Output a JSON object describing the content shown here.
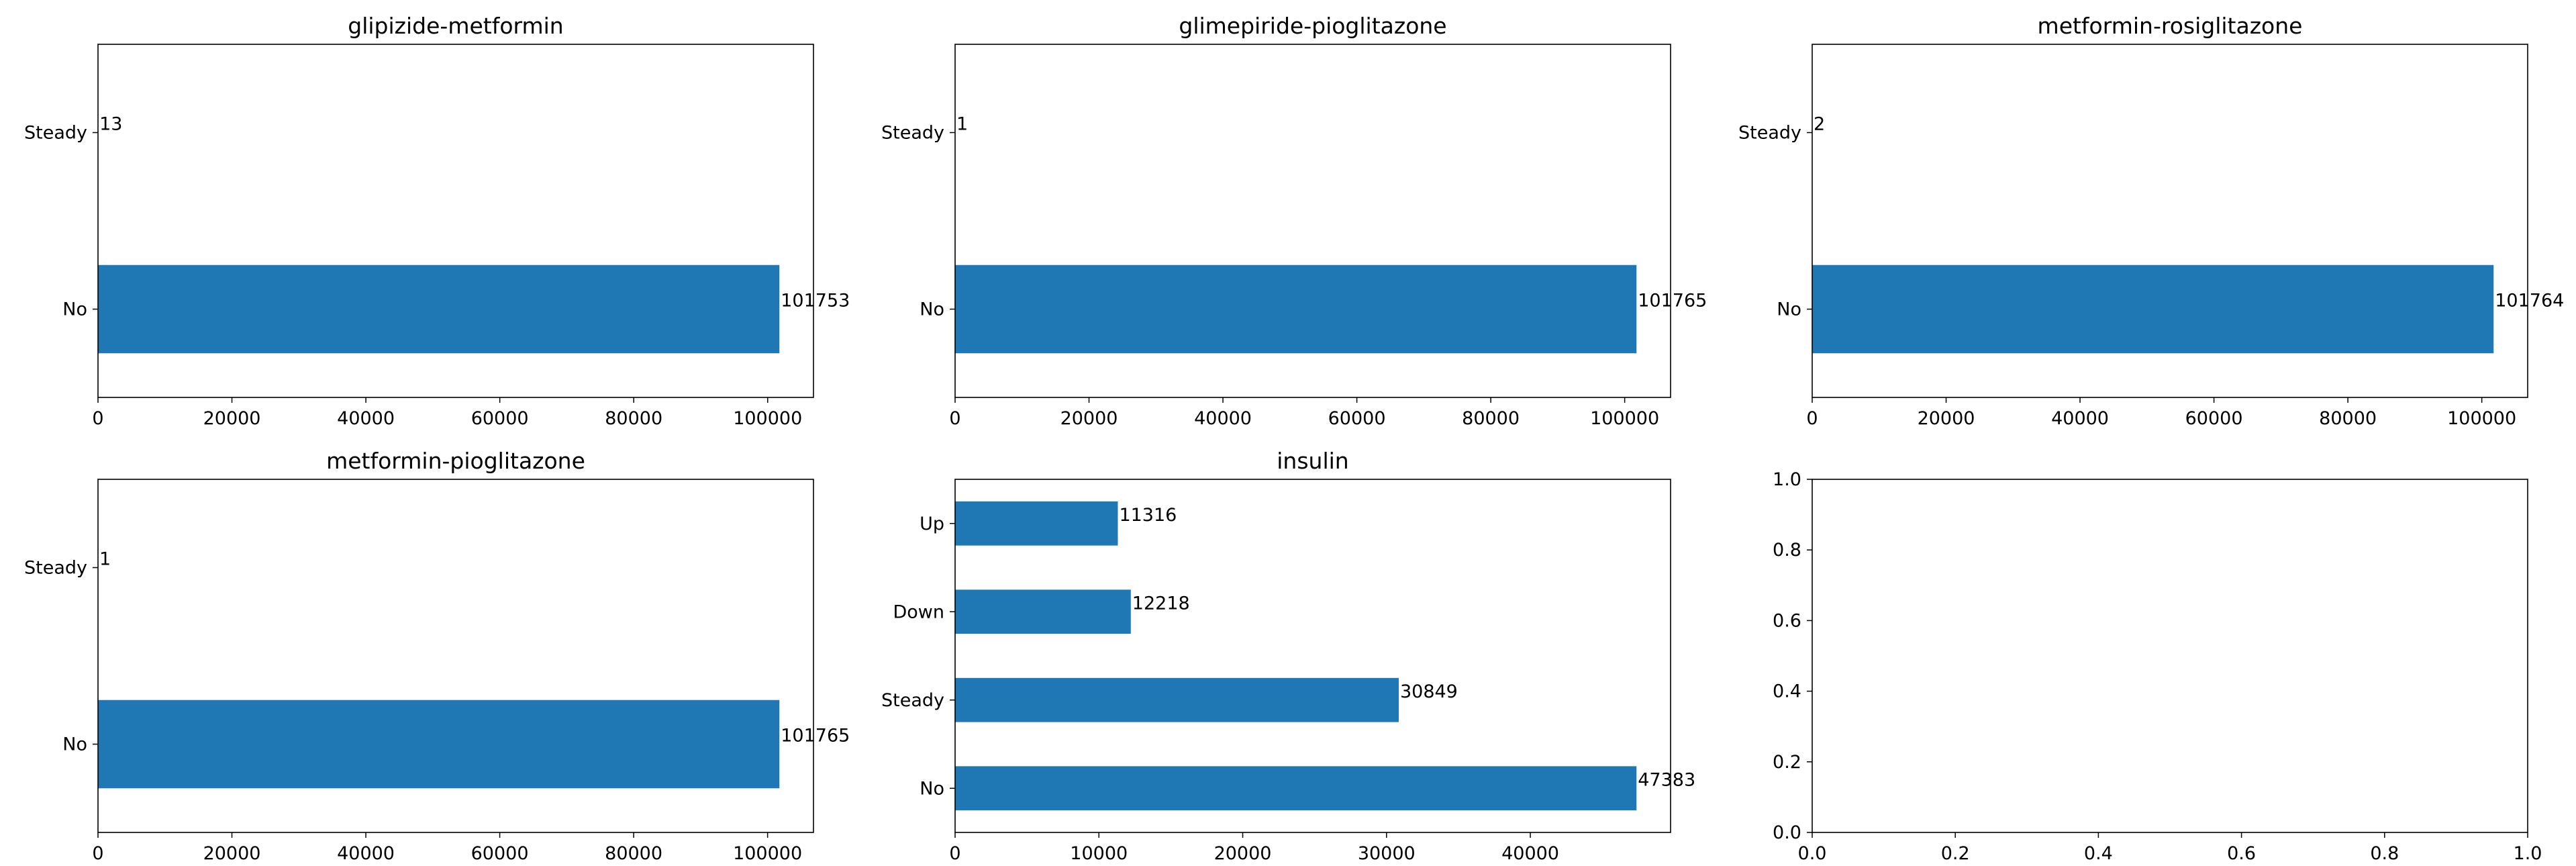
{
  "chart_data": [
    {
      "type": "bar",
      "orientation": "horizontal",
      "title": "glipizide-metformin",
      "categories": [
        "No",
        "Steady"
      ],
      "values": [
        101753,
        13
      ],
      "data_labels": [
        "101753",
        "13"
      ],
      "xlim": [
        0,
        106841
      ],
      "xticks": [
        0,
        20000,
        40000,
        60000,
        80000,
        100000
      ],
      "xtick_labels": [
        "0",
        "20000",
        "40000",
        "60000",
        "80000",
        "100000"
      ],
      "grid": false,
      "color": "#1f77b4"
    },
    {
      "type": "bar",
      "orientation": "horizontal",
      "title": "glimepiride-pioglitazone",
      "categories": [
        "No",
        "Steady"
      ],
      "values": [
        101765,
        1
      ],
      "data_labels": [
        "101765",
        "1"
      ],
      "xlim": [
        0,
        106853
      ],
      "xticks": [
        0,
        20000,
        40000,
        60000,
        80000,
        100000
      ],
      "xtick_labels": [
        "0",
        "20000",
        "40000",
        "60000",
        "80000",
        "100000"
      ],
      "grid": false,
      "color": "#1f77b4"
    },
    {
      "type": "bar",
      "orientation": "horizontal",
      "title": "metformin-rosiglitazone",
      "categories": [
        "No",
        "Steady"
      ],
      "values": [
        101764,
        2
      ],
      "data_labels": [
        "101764",
        "2"
      ],
      "xlim": [
        0,
        106852
      ],
      "xticks": [
        0,
        20000,
        40000,
        60000,
        80000,
        100000
      ],
      "xtick_labels": [
        "0",
        "20000",
        "40000",
        "60000",
        "80000",
        "100000"
      ],
      "grid": false,
      "color": "#1f77b4"
    },
    {
      "type": "bar",
      "orientation": "horizontal",
      "title": "metformin-pioglitazone",
      "categories": [
        "No",
        "Steady"
      ],
      "values": [
        101765,
        1
      ],
      "data_labels": [
        "101765",
        "1"
      ],
      "xlim": [
        0,
        106853
      ],
      "xticks": [
        0,
        20000,
        40000,
        60000,
        80000,
        100000
      ],
      "xtick_labels": [
        "0",
        "20000",
        "40000",
        "60000",
        "80000",
        "100000"
      ],
      "grid": false,
      "color": "#1f77b4"
    },
    {
      "type": "bar",
      "orientation": "horizontal",
      "title": "insulin",
      "categories": [
        "No",
        "Steady",
        "Down",
        "Up"
      ],
      "values": [
        47383,
        30849,
        12218,
        11316
      ],
      "data_labels": [
        "47383",
        "30849",
        "12218",
        "11316"
      ],
      "xlim": [
        0,
        49752
      ],
      "xticks": [
        0,
        10000,
        20000,
        30000,
        40000
      ],
      "xtick_labels": [
        "0",
        "10000",
        "20000",
        "30000",
        "40000"
      ],
      "grid": false,
      "color": "#1f77b4"
    },
    {
      "type": "empty",
      "title": "",
      "xlim": [
        0,
        1
      ],
      "ylim": [
        0,
        1
      ],
      "xticks": [
        0,
        0.2,
        0.4,
        0.6,
        0.8,
        1.0
      ],
      "xtick_labels": [
        "0.0",
        "0.2",
        "0.4",
        "0.6",
        "0.8",
        "1.0"
      ],
      "yticks": [
        0,
        0.2,
        0.4,
        0.6,
        0.8,
        1.0
      ],
      "ytick_labels": [
        "0.0",
        "0.2",
        "0.4",
        "0.6",
        "0.8",
        "1.0"
      ],
      "grid": false
    }
  ]
}
